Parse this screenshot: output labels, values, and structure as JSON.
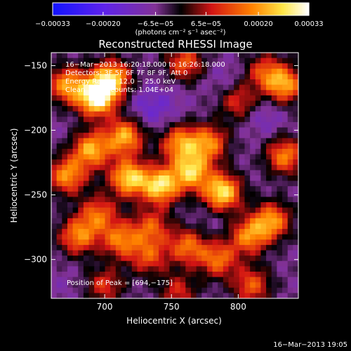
{
  "colorbar": {
    "ticks": [
      {
        "value": -0.00033,
        "label": "−0.00033"
      },
      {
        "value": -0.0002,
        "label": "−0.00020"
      },
      {
        "value": -6.5e-05,
        "label": "−6.5e−05"
      },
      {
        "value": 6.5e-05,
        "label": "6.5e−05"
      },
      {
        "value": 0.0002,
        "label": "0.00020"
      },
      {
        "value": 0.00033,
        "label": "0.00033"
      }
    ],
    "range": [
      -0.00033,
      0.00033
    ],
    "unit_label": "(photons cm⁻² s⁻¹ asec⁻²)"
  },
  "chart_data": {
    "type": "heatmap",
    "title": "Reconstructed RHESSI Image",
    "xlabel": "Heliocentric X (arcsec)",
    "ylabel": "Heliocentric Y (arcsec)",
    "xlim": [
      660,
      845
    ],
    "ylim": [
      -330,
      -140
    ],
    "xticks": [
      700,
      750,
      800
    ],
    "yticks": [
      -150,
      -200,
      -250,
      -300
    ],
    "grid": false,
    "peak": [
      694,
      -175
    ],
    "annotations": {
      "time": "16−Mar−2013 16:20:18.000 to 16:26:18.000",
      "detectors": "Detectors: 3F 5F 6F 7F 8F 9F, Att 0",
      "energy": "Energy Range: 12.0 − 25.0 keV",
      "clean": "Clean   Total counts: 1.04E+04",
      "peak_text": "Position of Peak = [694,−175]"
    },
    "features": [
      {
        "x": 694,
        "y": -175,
        "value": 0.00033
      },
      {
        "x": 705,
        "y": -160,
        "value": 0.00025
      },
      {
        "x": 672,
        "y": -165,
        "value": 0.0002
      },
      {
        "x": 672,
        "y": -235,
        "value": 0.0002
      },
      {
        "x": 690,
        "y": -215,
        "value": 0.00022
      },
      {
        "x": 715,
        "y": -205,
        "value": 0.00022
      },
      {
        "x": 718,
        "y": -237,
        "value": 0.00026
      },
      {
        "x": 742,
        "y": -243,
        "value": 0.00027
      },
      {
        "x": 765,
        "y": -232,
        "value": 0.00024
      },
      {
        "x": 788,
        "y": -248,
        "value": 0.00028
      },
      {
        "x": 756,
        "y": -210,
        "value": 0.00019
      },
      {
        "x": 778,
        "y": -210,
        "value": 0.00018
      },
      {
        "x": 680,
        "y": -282,
        "value": 0.00018
      },
      {
        "x": 695,
        "y": -265,
        "value": 0.00015
      },
      {
        "x": 712,
        "y": -285,
        "value": 0.00017
      },
      {
        "x": 733,
        "y": -298,
        "value": 0.00012
      },
      {
        "x": 735,
        "y": -275,
        "value": 0.00013
      },
      {
        "x": 762,
        "y": -290,
        "value": 0.00016
      },
      {
        "x": 785,
        "y": -300,
        "value": 0.00016
      },
      {
        "x": 808,
        "y": -282,
        "value": 0.00018
      },
      {
        "x": 825,
        "y": -270,
        "value": 0.0002
      },
      {
        "x": 835,
        "y": -220,
        "value": 0.00018
      },
      {
        "x": 835,
        "y": -165,
        "value": 0.0002
      },
      {
        "x": 820,
        "y": -155,
        "value": 0.00012
      },
      {
        "x": 760,
        "y": -148,
        "value": 0.00014
      },
      {
        "x": 800,
        "y": -178,
        "value": 0.0001
      },
      {
        "x": 810,
        "y": -320,
        "value": 0.00014
      },
      {
        "x": 700,
        "y": -320,
        "value": 0.0001
      },
      {
        "x": 755,
        "y": -325,
        "value": 9e-05
      },
      {
        "x": 730,
        "y": -180,
        "value": -0.00012
      },
      {
        "x": 740,
        "y": -190,
        "value": -0.0001
      },
      {
        "x": 670,
        "y": -320,
        "value": -8e-05
      },
      {
        "x": 790,
        "y": -160,
        "value": -0.0001
      },
      {
        "x": 820,
        "y": -190,
        "value": -0.00012
      },
      {
        "x": 750,
        "y": -175,
        "value": -9e-05
      },
      {
        "x": 780,
        "y": -270,
        "value": -8e-05
      },
      {
        "x": 665,
        "y": -200,
        "value": -7e-05
      }
    ]
  },
  "footer": {
    "timestamp": "16−Mar−2013 19:05"
  }
}
